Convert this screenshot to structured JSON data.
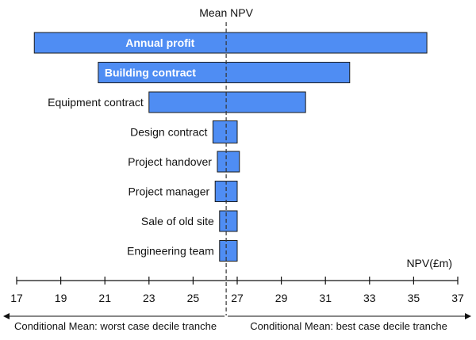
{
  "chart_data": {
    "type": "bar",
    "orientation": "horizontal",
    "title": "Mean NPV",
    "mean": 26.5,
    "unit_label": "NPV(£m)",
    "xlim": [
      17,
      37
    ],
    "xticks": [
      17,
      19,
      21,
      23,
      25,
      27,
      29,
      31,
      33,
      35,
      37
    ],
    "categories": [
      "Annual profit",
      "Building contract",
      "Equipment contract",
      "Design contract",
      "Project handover",
      "Project manager",
      "Sale of old site",
      "Engineering team"
    ],
    "low": [
      17.8,
      20.7,
      23.0,
      25.9,
      26.1,
      26.0,
      26.2,
      26.2
    ],
    "high": [
      35.6,
      32.1,
      30.1,
      27.0,
      27.1,
      27.0,
      27.0,
      27.0
    ],
    "labels_inside": [
      true,
      true,
      false,
      false,
      false,
      false,
      false,
      false
    ],
    "footer_left": "Conditional Mean: worst case decile tranche",
    "footer_right": "Conditional Mean: best case decile tranche",
    "colors": {
      "bar": "#4f8df3",
      "outline": "#1a1a1a"
    },
    "grid": false,
    "legend": "none"
  }
}
